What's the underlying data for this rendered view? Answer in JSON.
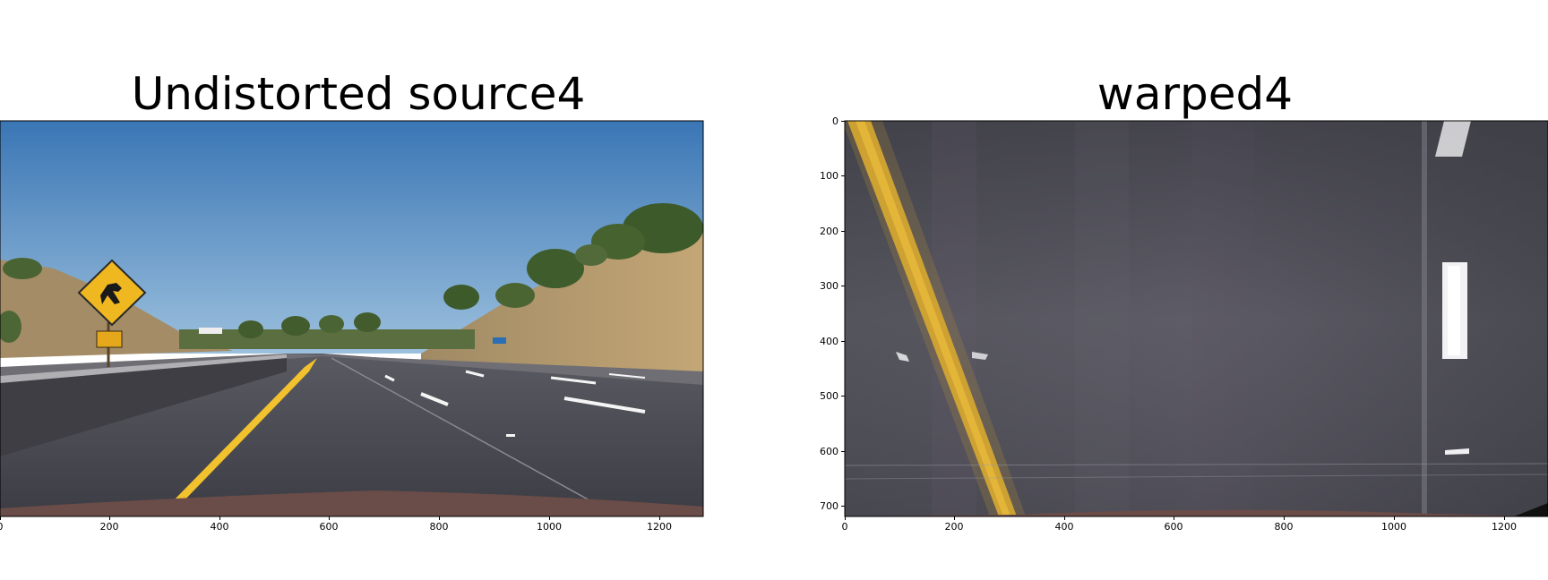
{
  "panels": [
    {
      "title": "Undistorted source4",
      "x_ticks": [
        "0",
        "200",
        "400",
        "600",
        "800",
        "1000",
        "1200"
      ],
      "y_ticks": []
    },
    {
      "title": "warped4",
      "x_ticks": [
        "0",
        "200",
        "400",
        "600",
        "800",
        "1000",
        "1200"
      ],
      "y_ticks": [
        "0",
        "100",
        "200",
        "300",
        "400",
        "500",
        "600",
        "700"
      ]
    }
  ],
  "colors": {
    "sky_top": "#3f7bb8",
    "sky_bottom": "#8bb4d6",
    "asphalt": "#4a4a52",
    "lane_yellow": "#f2c12e",
    "lane_white": "#f5f5f5",
    "sign_yellow": "#f0b820",
    "hillside": "#b59a6a",
    "vegetation": "#3d5a2a",
    "hood": "#6a4c48"
  },
  "icons": [
    "deer-crossing-sign-icon"
  ]
}
